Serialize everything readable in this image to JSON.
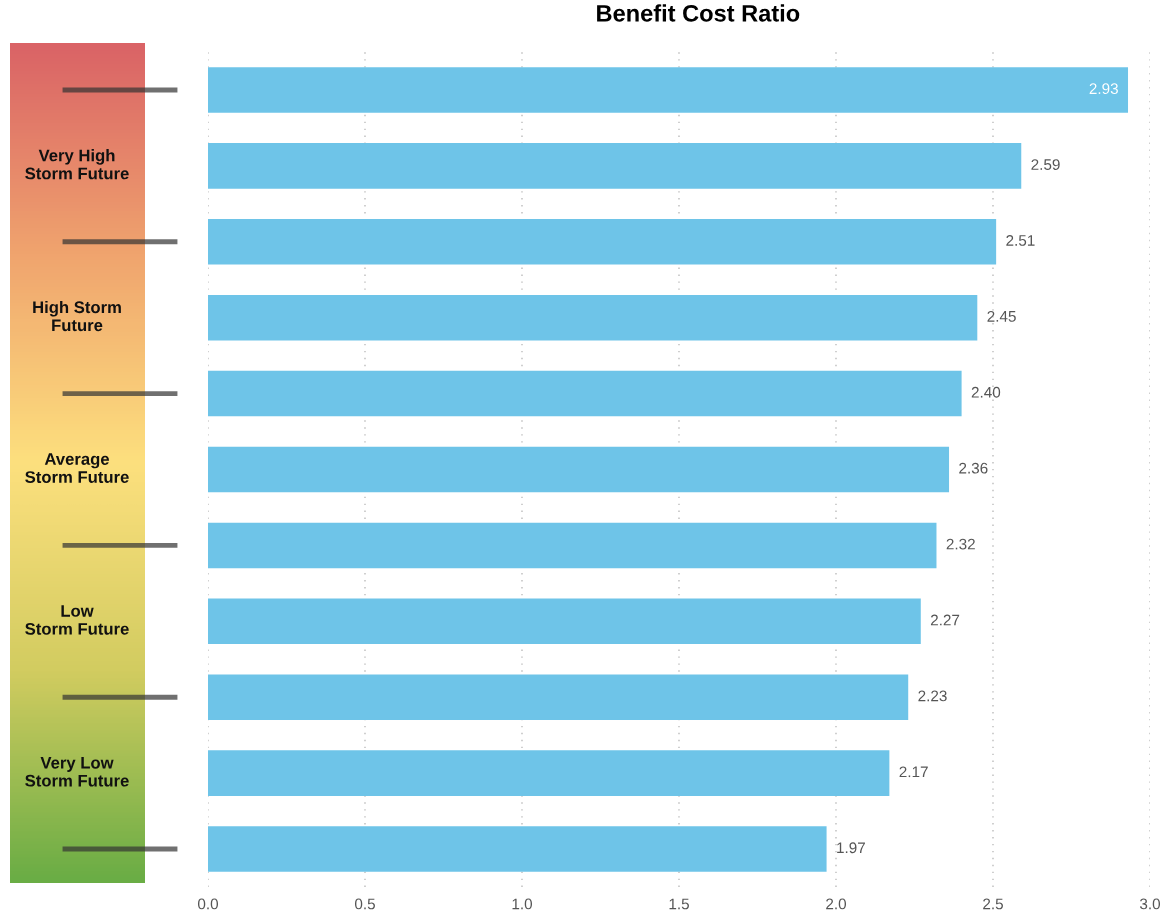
{
  "chart_data": {
    "type": "bar",
    "orientation": "horizontal",
    "title": "Benefit Cost Ratio",
    "categories": [
      null,
      null,
      null,
      null,
      null,
      null,
      null,
      null,
      null,
      null,
      null
    ],
    "values": [
      2.93,
      2.59,
      2.51,
      2.45,
      2.4,
      2.36,
      2.32,
      2.27,
      2.23,
      2.17,
      1.97
    ],
    "value_labels": [
      "2.93",
      "2.59",
      "2.51",
      "2.45",
      "2.40",
      "2.36",
      "2.32",
      "2.27",
      "2.23",
      "2.17",
      "1.97"
    ],
    "color": "#6ec4e8",
    "xlim": [
      0,
      3.0
    ],
    "xticks": [
      {
        "value": 0,
        "label": "0.0"
      },
      0.5,
      {
        "value": 1,
        "label": "1.0"
      },
      1.5,
      {
        "value": 2,
        "label": "2.0"
      },
      2.5,
      {
        "value": 3,
        "label": "3.0"
      }
    ],
    "grid": "x",
    "annotations": [
      "Very High\nStorm Future",
      "High Storm\nFuture",
      "Average\nStorm Future",
      "Low\nStorm Future",
      "Very Low\nStorm Future"
    ]
  }
}
